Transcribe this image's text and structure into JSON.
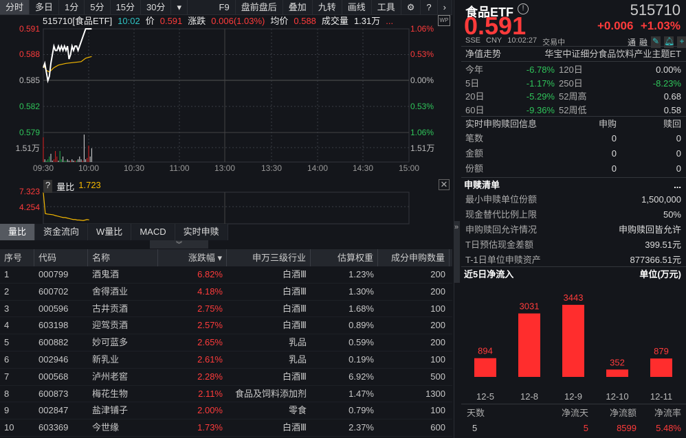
{
  "toolbar": {
    "tabs": [
      "分时",
      "多日",
      "1分",
      "5分",
      "15分",
      "30分"
    ],
    "more": "▾",
    "right": [
      "F9",
      "盘前盘后",
      "叠加",
      "九转",
      "画线",
      "工具"
    ]
  },
  "quote_bar": {
    "code_name": "515710[食品ETF]",
    "time": "10:02",
    "price_label": "价",
    "price": "0.591",
    "change_label": "涨跌",
    "change": "0.006(1.03%)",
    "avg_label": "均价",
    "avg": "0.588",
    "vol_label": "成交量",
    "vol": "1.31万",
    "more": "..."
  },
  "chart_data": {
    "type": "line",
    "title": "",
    "price_axis": [
      "0.591",
      "0.588",
      "0.585",
      "0.582",
      "0.579"
    ],
    "pct_axis": [
      "1.06%",
      "0.53%",
      "0.00%",
      "0.53%",
      "1.06%"
    ],
    "ylim": [
      0.579,
      0.591
    ],
    "vol_axis_label": "1.51万",
    "time_axis": [
      "09:30",
      "10:00",
      "10:30",
      "11:00",
      "13:00",
      "13:30",
      "14:00",
      "14:30",
      "15:00"
    ],
    "price_series": [
      [
        "09:30",
        0.5865
      ],
      [
        "09:31",
        0.587
      ],
      [
        "09:32",
        0.586
      ],
      [
        "09:33",
        0.585
      ],
      [
        "09:34",
        0.5855
      ],
      [
        "09:35",
        0.587
      ],
      [
        "09:36",
        0.588
      ],
      [
        "09:37",
        0.589
      ],
      [
        "09:38",
        0.5885
      ],
      [
        "09:39",
        0.5885
      ],
      [
        "09:40",
        0.589
      ],
      [
        "09:41",
        0.5885
      ],
      [
        "09:42",
        0.589
      ],
      [
        "09:43",
        0.5885
      ],
      [
        "09:44",
        0.589
      ],
      [
        "09:45",
        0.5885
      ],
      [
        "09:46",
        0.589
      ],
      [
        "09:47",
        0.5875
      ],
      [
        "09:48",
        0.588
      ],
      [
        "09:49",
        0.589
      ],
      [
        "09:50",
        0.5885
      ],
      [
        "09:51",
        0.589
      ],
      [
        "09:52",
        0.589
      ],
      [
        "09:53",
        0.5885
      ],
      [
        "09:54",
        0.589
      ],
      [
        "09:55",
        0.5895
      ],
      [
        "09:56",
        0.59
      ],
      [
        "09:57",
        0.5905
      ],
      [
        "09:58",
        0.591
      ],
      [
        "09:59",
        0.591
      ],
      [
        "10:00",
        0.591
      ],
      [
        "10:01",
        0.591
      ],
      [
        "10:02",
        0.591
      ]
    ],
    "avg_series": [
      [
        "09:30",
        0.5868
      ],
      [
        "09:32",
        0.5862
      ],
      [
        "09:34",
        0.586
      ],
      [
        "09:37",
        0.5865
      ],
      [
        "09:40",
        0.5868
      ],
      [
        "09:45",
        0.587
      ],
      [
        "09:50",
        0.5871
      ],
      [
        "09:55",
        0.5872
      ],
      [
        "09:58",
        0.5876
      ],
      [
        "10:02",
        0.5878
      ]
    ],
    "volume": [
      9,
      1,
      0.5,
      1,
      2,
      3,
      0.5,
      1,
      4,
      2,
      0.5,
      4,
      1,
      2,
      0.5,
      0.5,
      1,
      0.5,
      0.5,
      1,
      0.5,
      0.5,
      0.5,
      1,
      2,
      1,
      0.5,
      10,
      1,
      1.5,
      6,
      2,
      5
    ],
    "volume_colors": [
      "r",
      "w",
      "g",
      "g",
      "g",
      "w",
      "w",
      "r",
      "r",
      "r",
      "w",
      "g",
      "g",
      "w",
      "g",
      "g",
      "w",
      "w",
      "r",
      "w",
      "w",
      "r",
      "g",
      "w",
      "w",
      "w",
      "r",
      "w",
      "w",
      "r",
      "r",
      "w",
      "w"
    ]
  },
  "sub_chart": {
    "help": "?",
    "label": "量比",
    "value": "1.723",
    "axis": [
      "7.323",
      "4.254"
    ],
    "series": [
      7.3,
      3.0,
      2.9,
      2.85,
      2.8,
      2.75,
      2.6,
      2.5,
      2.4,
      2.3,
      2.2,
      2.2,
      2.1,
      2.0,
      1.9,
      1.8,
      1.8,
      1.7,
      1.7,
      1.65,
      1.6,
      1.7,
      1.8,
      1.723
    ]
  },
  "sub_tabs": [
    "量比",
    "资金流向",
    "W量比",
    "MACD",
    "实时申赎"
  ],
  "table": {
    "headers": [
      "序号",
      "代码",
      "名称",
      "涨跌幅 ▾",
      "申万三级行业",
      "估算权重",
      "成分申购数量"
    ],
    "rows": [
      [
        "1",
        "000799",
        "酒鬼酒",
        "6.82%",
        "白酒Ⅲ",
        "1.23%",
        "200"
      ],
      [
        "2",
        "600702",
        "舍得酒业",
        "4.18%",
        "白酒Ⅲ",
        "1.30%",
        "200"
      ],
      [
        "3",
        "000596",
        "古井贡酒",
        "2.75%",
        "白酒Ⅲ",
        "1.68%",
        "100"
      ],
      [
        "4",
        "603198",
        "迎驾贡酒",
        "2.57%",
        "白酒Ⅲ",
        "0.89%",
        "200"
      ],
      [
        "5",
        "600882",
        "妙可蓝多",
        "2.65%",
        "乳品",
        "0.59%",
        "200"
      ],
      [
        "6",
        "002946",
        "新乳业",
        "2.61%",
        "乳品",
        "0.19%",
        "100"
      ],
      [
        "7",
        "000568",
        "泸州老窖",
        "2.28%",
        "白酒Ⅲ",
        "6.92%",
        "500"
      ],
      [
        "8",
        "600873",
        "梅花生物",
        "2.11%",
        "食品及饲料添加剂",
        "1.47%",
        "1300"
      ],
      [
        "9",
        "002847",
        "盐津铺子",
        "2.00%",
        "零食",
        "0.79%",
        "100"
      ],
      [
        "10",
        "603369",
        "今世缘",
        "1.73%",
        "白酒Ⅲ",
        "2.37%",
        "600"
      ]
    ]
  },
  "header": {
    "name": "食品ETF",
    "code": "515710",
    "price": "0.591",
    "change": "+0.006",
    "pct": "+1.03%",
    "exchange": "SSE",
    "currency": "CNY",
    "time": "10:02:27",
    "status": "交易中",
    "tong": "通",
    "rong": "融"
  },
  "nav": {
    "title": "净值走势",
    "fund_name": "华宝中证细分食品饮料产业主题ET",
    "rows": [
      [
        "今年",
        "-6.78%",
        "120日",
        "0.00%"
      ],
      [
        "5日",
        "-1.17%",
        "250日",
        "-8.23%"
      ],
      [
        "20日",
        "-5.29%",
        "52周高",
        "0.68"
      ],
      [
        "60日",
        "-9.36%",
        "52周低",
        "0.58"
      ]
    ]
  },
  "realtime": {
    "title": "实时申购赎回信息",
    "cols": [
      "申购",
      "赎回"
    ],
    "rows": [
      [
        "笔数",
        "0",
        "0"
      ],
      [
        "金额",
        "0",
        "0"
      ],
      [
        "份额",
        "0",
        "0"
      ]
    ]
  },
  "list": {
    "title": "申赎清单",
    "more": "...",
    "rows": [
      [
        "最小申赎单位份额",
        "1,500,000"
      ],
      [
        "现金替代比例上限",
        "50%"
      ],
      [
        "申购赎回允许情况",
        "申购赎回皆允许"
      ],
      [
        "T日预估现金差额",
        "399.51元"
      ],
      [
        "T-1日单位申赎资产",
        "877366.51元"
      ]
    ]
  },
  "flow": {
    "title": "近5日净流入",
    "unit": "单位(万元)",
    "chart_data": {
      "type": "bar",
      "categories": [
        "12-5",
        "12-8",
        "12-9",
        "12-10",
        "12-11"
      ],
      "values": [
        894,
        3031,
        3443,
        352,
        879
      ]
    },
    "summary_headers": [
      "天数",
      "净流天",
      "净流额",
      "净流率"
    ],
    "summary_values": [
      "5",
      "5",
      "8599",
      "5.48%"
    ]
  },
  "colors": {
    "up": "#ff3b3b",
    "down": "#2fc45a",
    "avg": "#f5b800",
    "bg": "#14161b"
  }
}
